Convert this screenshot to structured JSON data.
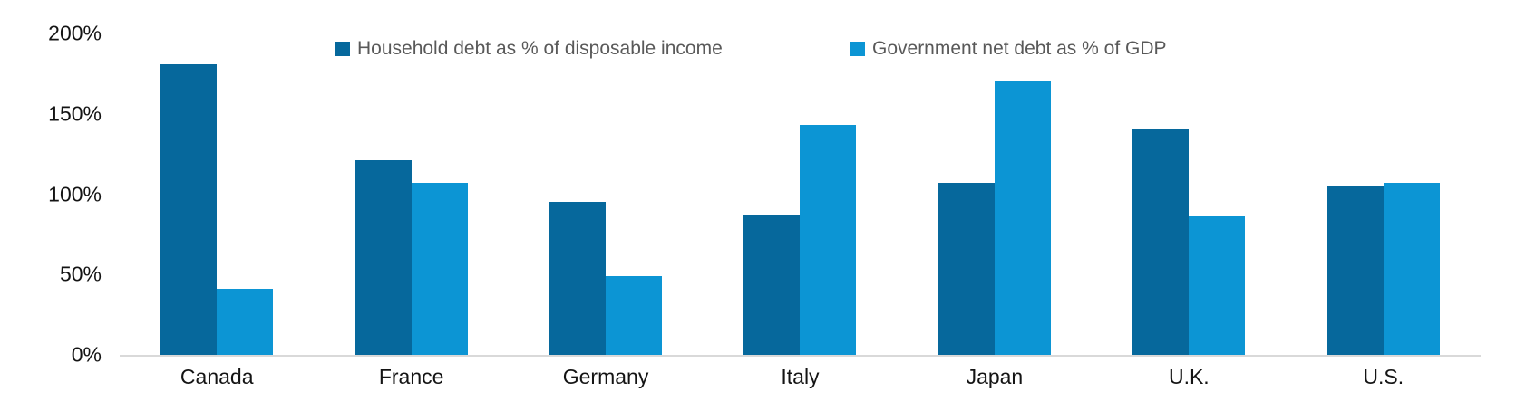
{
  "chart_data": {
    "type": "bar",
    "categories": [
      "Canada",
      "France",
      "Germany",
      "Italy",
      "Japan",
      "U.K.",
      "U.S."
    ],
    "series": [
      {
        "name": "Household debt as % of disposable income",
        "color": "#06689c",
        "values": [
          181,
          121,
          95,
          87,
          107,
          141,
          105
        ]
      },
      {
        "name": "Government net debt as % of GDP",
        "color": "#0c95d4",
        "values": [
          41,
          107,
          49,
          143,
          170,
          86,
          107
        ]
      }
    ],
    "title": "",
    "xlabel": "",
    "ylabel": "",
    "ylim": [
      0,
      200
    ],
    "yticks": [
      {
        "value": 0,
        "label": "0%"
      },
      {
        "value": 50,
        "label": "50%"
      },
      {
        "value": 100,
        "label": "100%"
      },
      {
        "value": 150,
        "label": "150%"
      },
      {
        "value": 200,
        "label": "200%"
      }
    ],
    "grid": false,
    "legend_position": "top",
    "colors": {
      "axis_line": "#d9d9d9",
      "tick_text": "#141414",
      "legend_text": "#595959",
      "background": "#ffffff"
    }
  }
}
